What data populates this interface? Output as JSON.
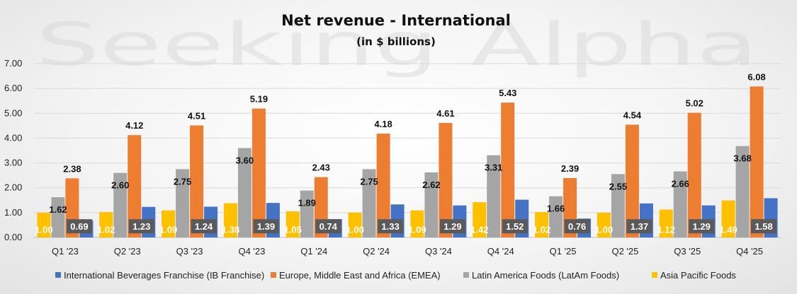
{
  "watermark": "Seeking Alpha",
  "chart_data": {
    "type": "bar",
    "title": "Net revenue - International",
    "subtitle": "(in $ billions)",
    "xlabel": "",
    "ylabel": "",
    "ylim": [
      0,
      7
    ],
    "yticks": [
      "0.00",
      "1.00",
      "2.00",
      "3.00",
      "4.00",
      "5.00",
      "6.00",
      "7.00"
    ],
    "categories": [
      "Q1 '23",
      "Q2 '23",
      "Q3 '23",
      "Q4 '23",
      "Q1 '24",
      "Q2 '24",
      "Q3 '24",
      "Q4 '24",
      "Q1 '25",
      "Q2 '25",
      "Q3 '25",
      "Q4 '25"
    ],
    "series": [
      {
        "name": "Asia Pacific Foods",
        "color": "#FFC000",
        "values": [
          1.0,
          1.02,
          1.09,
          1.38,
          1.05,
          1.0,
          1.09,
          1.42,
          1.02,
          1.0,
          1.12,
          1.49
        ]
      },
      {
        "name": "Latin America Foods (LatAm Foods)",
        "color": "#A5A5A5",
        "values": [
          1.62,
          2.6,
          2.75,
          3.6,
          1.89,
          2.75,
          2.62,
          3.31,
          1.66,
          2.55,
          2.66,
          3.68
        ]
      },
      {
        "name": "Europe, Middle East and Africa (EMEA)",
        "color": "#ED7D31",
        "values": [
          2.38,
          4.12,
          4.51,
          5.19,
          2.43,
          4.18,
          4.61,
          5.43,
          2.39,
          4.54,
          5.02,
          6.08
        ]
      },
      {
        "name": "International Beverages Franchise (IB Franchise)",
        "color": "#4472C4",
        "values": [
          0.69,
          1.23,
          1.24,
          1.39,
          0.74,
          1.33,
          1.29,
          1.52,
          0.76,
          1.37,
          1.29,
          1.58
        ]
      }
    ],
    "legend_order": [
      "International Beverages Franchise (IB Franchise)",
      "Europe, Middle East and Africa (EMEA)",
      "Latin America Foods (LatAm Foods)",
      "Asia Pacific Foods"
    ],
    "legend_position": "bottom"
  }
}
